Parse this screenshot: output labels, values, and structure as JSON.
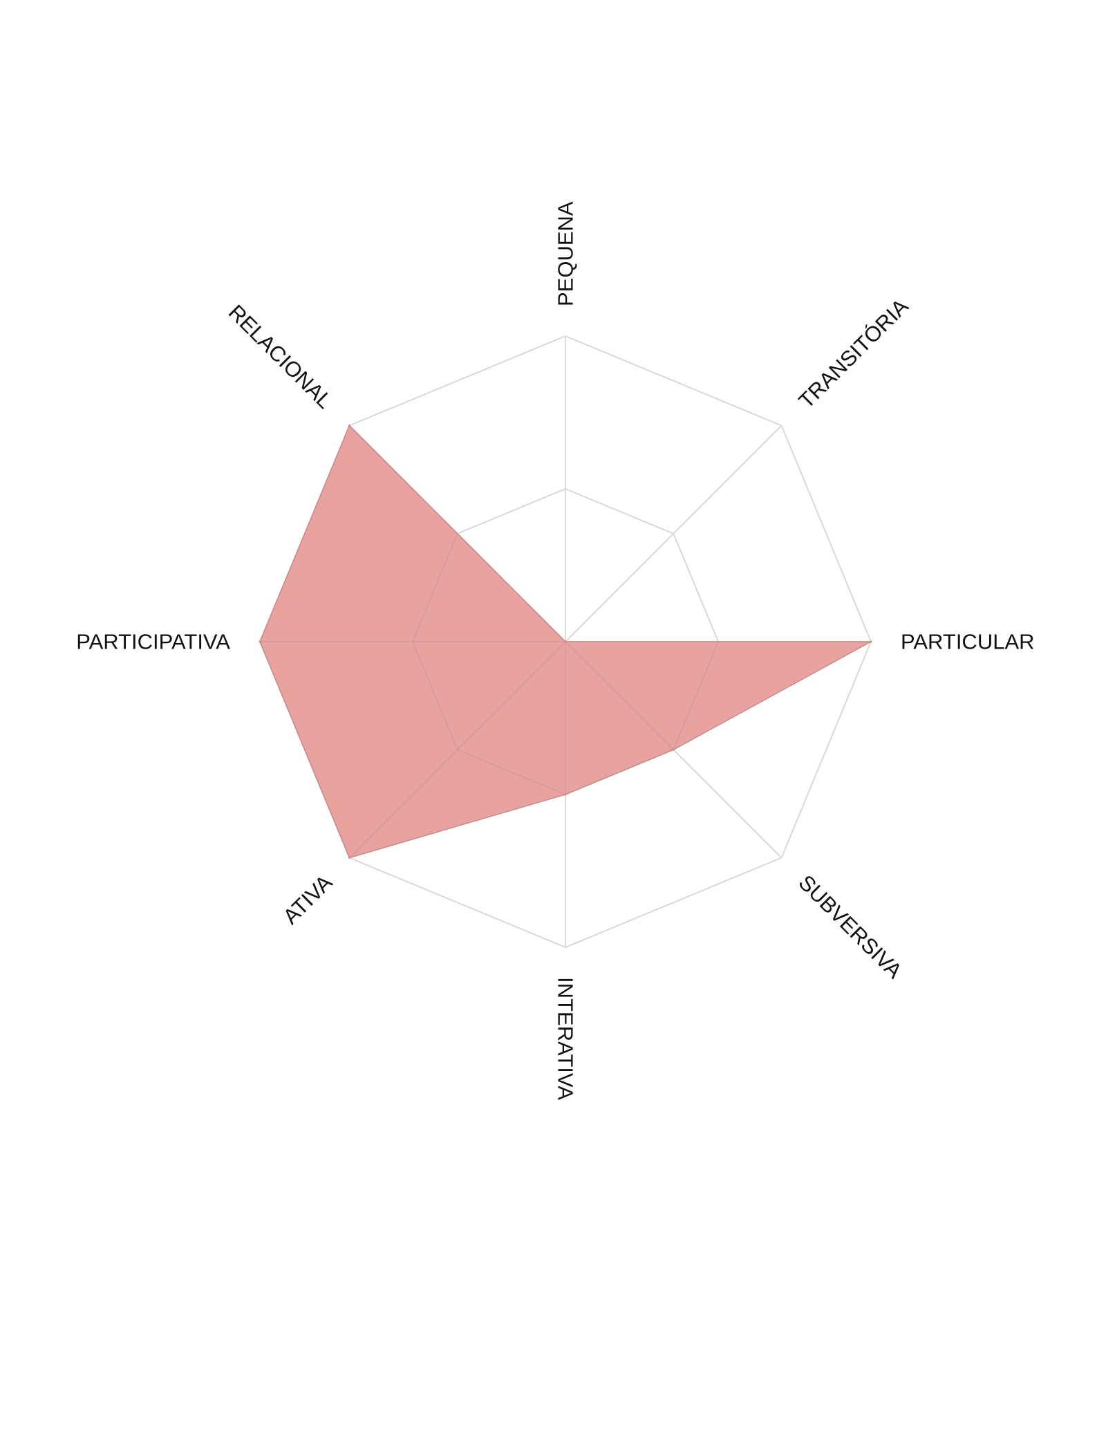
{
  "chart_data": {
    "type": "radar",
    "axes": [
      "PEQUENA",
      "TRANSITÓRIA",
      "PARTICULAR",
      "SUBVERSIVA",
      "INTERATIVA",
      "ATIVA",
      "PARTICIPATIVA",
      "RELACIONAL"
    ],
    "rings": 2,
    "range": [
      0,
      2
    ],
    "grid": true,
    "series": [
      {
        "values": [
          0,
          0,
          2,
          1,
          1,
          2,
          2,
          2
        ],
        "color": "#e8a3a1"
      }
    ],
    "grid_color": "#d9d9d9",
    "outline_color": "#c98a88"
  }
}
